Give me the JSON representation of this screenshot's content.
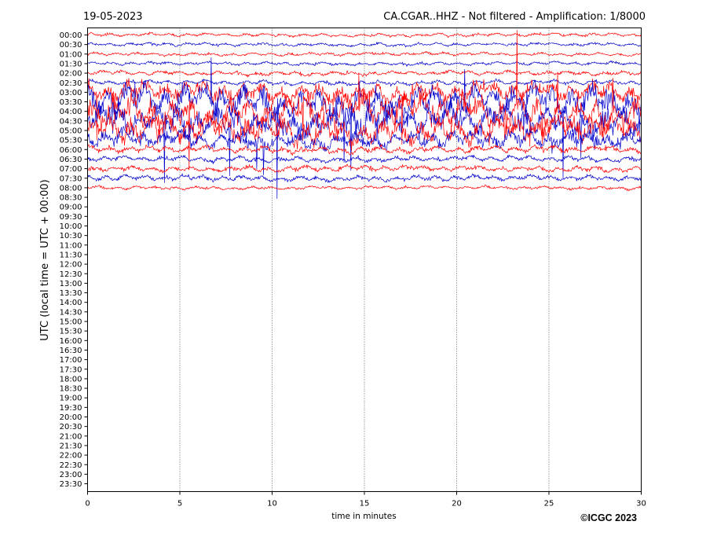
{
  "header": {
    "date": "19-05-2023",
    "title": "CA.CGAR..HHZ - Not filtered - Amplification: 1/8000"
  },
  "footer": {
    "copyright": "©ICGC 2023"
  },
  "chart_data": {
    "type": "line",
    "title": "CA.CGAR..HHZ - Not filtered - Amplification: 1/8000",
    "xlabel": "time in minutes",
    "ylabel": "UTC (local time = UTC + 00:00)",
    "xlim": [
      0,
      30
    ],
    "xticks": [
      "0",
      "5",
      "10",
      "15",
      "20",
      "25",
      "30"
    ],
    "grid": "vertical-dotted",
    "row_labels": [
      "00:00",
      "00:30",
      "01:00",
      "01:30",
      "02:00",
      "02:30",
      "03:00",
      "03:30",
      "04:00",
      "04:30",
      "05:00",
      "05:30",
      "06:00",
      "06:30",
      "07:00",
      "07:30",
      "08:00",
      "08:30",
      "09:00",
      "09:30",
      "10:00",
      "10:30",
      "11:00",
      "11:30",
      "12:00",
      "12:30",
      "13:00",
      "13:30",
      "14:00",
      "14:30",
      "15:00",
      "15:30",
      "16:00",
      "16:30",
      "17:00",
      "17:30",
      "18:00",
      "18:30",
      "19:00",
      "19:30",
      "20:00",
      "20:30",
      "21:00",
      "21:30",
      "22:00",
      "22:30",
      "23:00",
      "23:30"
    ],
    "series_colors": [
      "#ff0000",
      "#0000cc"
    ],
    "traces": [
      {
        "row": "00:00",
        "amplitude": 0.3
      },
      {
        "row": "00:30",
        "amplitude": 0.3
      },
      {
        "row": "01:00",
        "amplitude": 0.3
      },
      {
        "row": "01:30",
        "amplitude": 0.3
      },
      {
        "row": "02:00",
        "amplitude": 0.4
      },
      {
        "row": "02:30",
        "amplitude": 0.4
      },
      {
        "row": "03:00",
        "amplitude": 1.6
      },
      {
        "row": "03:30",
        "amplitude": 2.6
      },
      {
        "row": "04:00",
        "amplitude": 2.6
      },
      {
        "row": "04:30",
        "amplitude": 2.4
      },
      {
        "row": "05:00",
        "amplitude": 2.2
      },
      {
        "row": "05:30",
        "amplitude": 1.4
      },
      {
        "row": "06:00",
        "amplitude": 0.6
      },
      {
        "row": "06:30",
        "amplitude": 0.5
      },
      {
        "row": "07:00",
        "amplitude": 0.5
      },
      {
        "row": "07:30",
        "amplitude": 0.5
      },
      {
        "row": "08:00",
        "amplitude": 0.3
      }
    ]
  }
}
